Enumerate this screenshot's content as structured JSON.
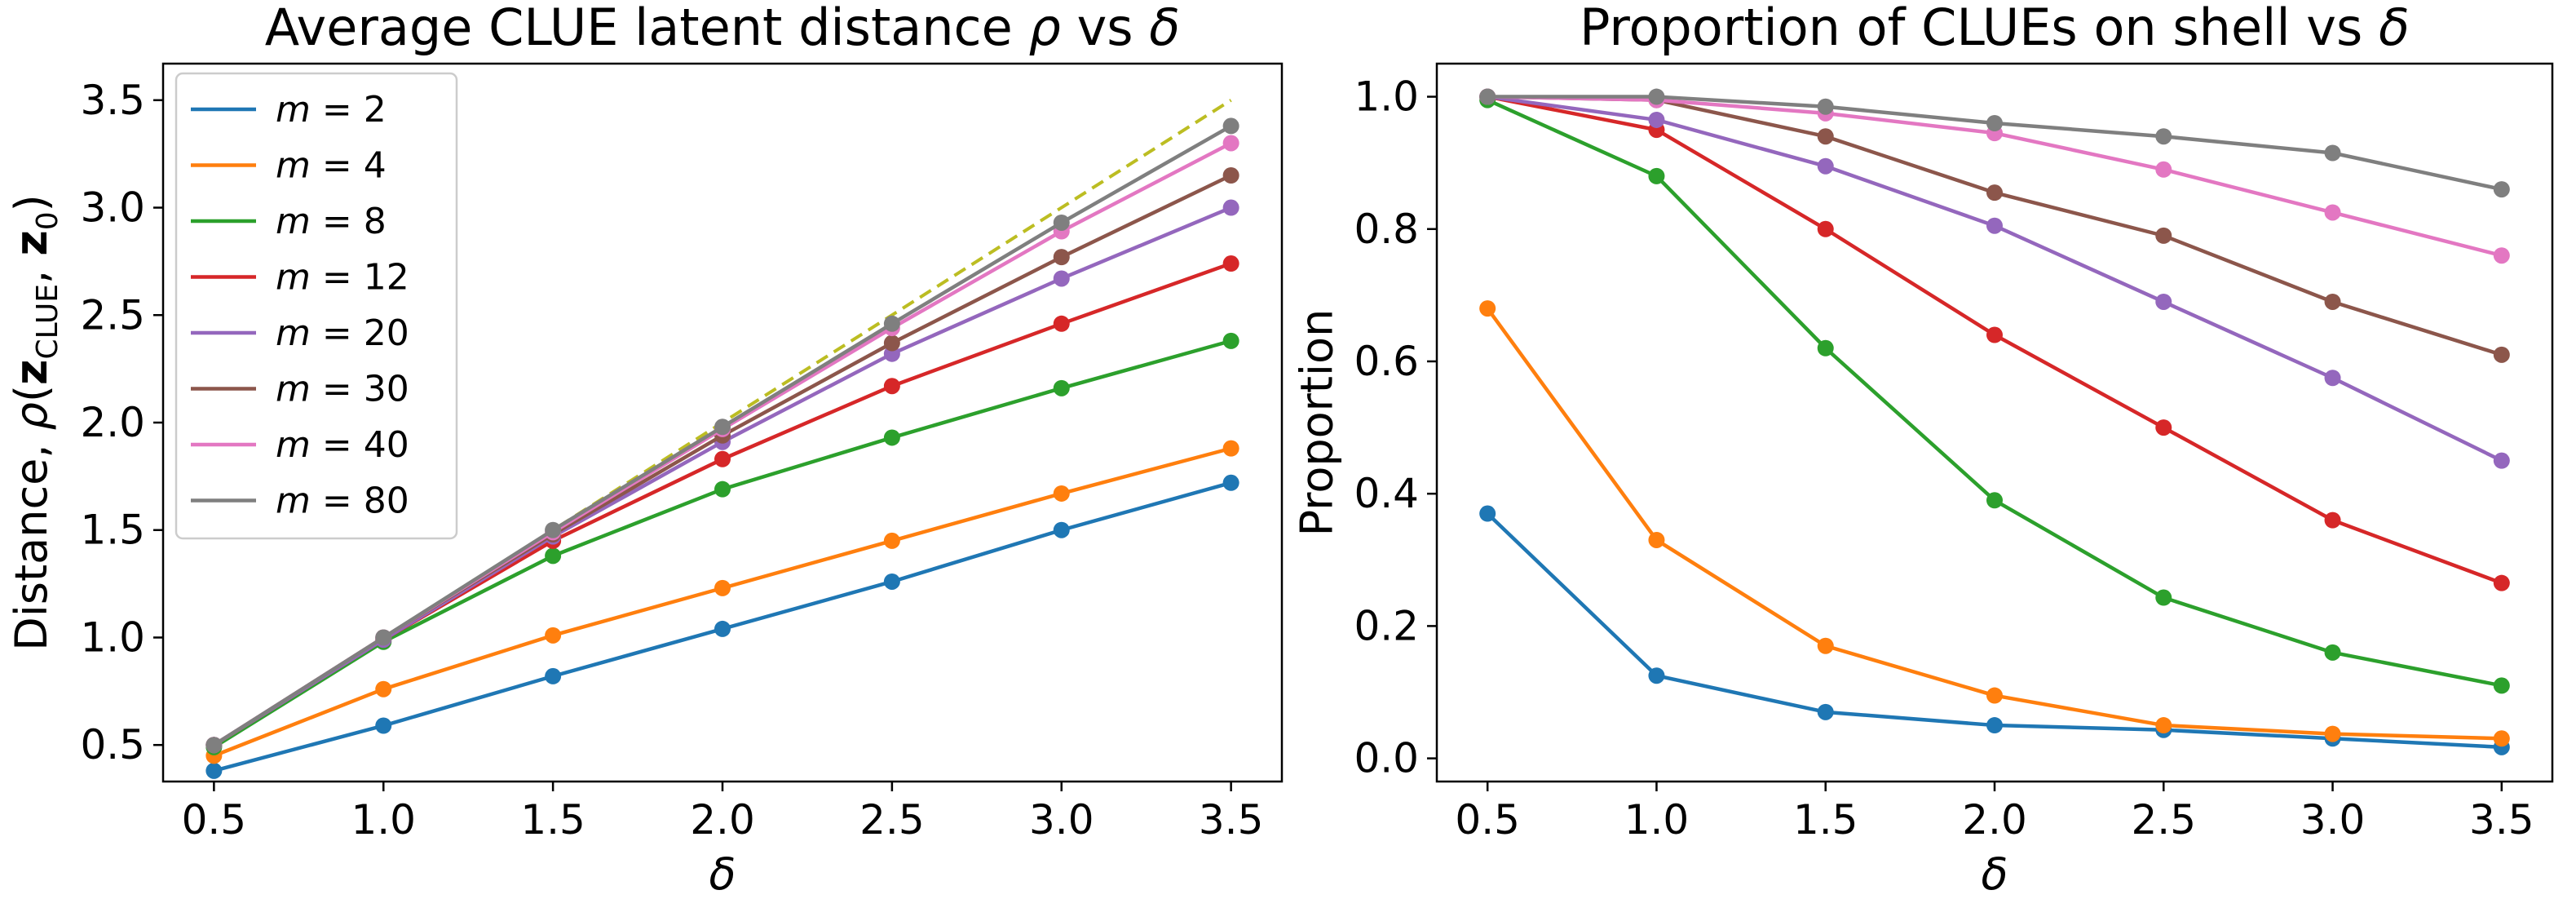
{
  "chart_data": [
    {
      "type": "line",
      "title": "Average CLUE latent distance ρ vs δ",
      "xlabel": "δ",
      "ylabel": "Distance, ρ(z_CLUE, z_0)",
      "x": [
        0.5,
        1.0,
        1.5,
        2.0,
        2.5,
        3.0,
        3.5
      ],
      "xlim": [
        0.35,
        3.65
      ],
      "ylim": [
        0.33,
        3.67
      ],
      "xticks": [
        "0.5",
        "1.0",
        "1.5",
        "2.0",
        "2.5",
        "3.0",
        "3.5"
      ],
      "yticks": [
        "0.5",
        "1.0",
        "1.5",
        "2.0",
        "2.5",
        "3.0",
        "3.5"
      ],
      "legend_position": "upper-left",
      "reference_line": {
        "x": [
          0.5,
          3.5
        ],
        "y": [
          0.5,
          3.5
        ],
        "style": "dashed",
        "color": "#bcbd22"
      },
      "series": [
        {
          "name": "m = 2",
          "color": "#1f77b4",
          "values": [
            0.38,
            0.59,
            0.82,
            1.04,
            1.26,
            1.5,
            1.72
          ]
        },
        {
          "name": "m = 4",
          "color": "#ff7f0e",
          "values": [
            0.45,
            0.76,
            1.01,
            1.23,
            1.45,
            1.67,
            1.88
          ]
        },
        {
          "name": "m = 8",
          "color": "#2ca02c",
          "values": [
            0.49,
            0.98,
            1.38,
            1.69,
            1.93,
            2.16,
            2.38
          ]
        },
        {
          "name": "m = 12",
          "color": "#d62728",
          "values": [
            0.5,
            0.99,
            1.45,
            1.83,
            2.17,
            2.46,
            2.74
          ]
        },
        {
          "name": "m = 20",
          "color": "#9467bd",
          "values": [
            0.5,
            0.99,
            1.47,
            1.91,
            2.32,
            2.67,
            3.0
          ]
        },
        {
          "name": "m = 30",
          "color": "#8c564b",
          "values": [
            0.5,
            1.0,
            1.48,
            1.94,
            2.37,
            2.77,
            3.15
          ]
        },
        {
          "name": "m = 40",
          "color": "#e377c2",
          "values": [
            0.5,
            1.0,
            1.49,
            1.97,
            2.44,
            2.89,
            3.3
          ]
        },
        {
          "name": "m = 80",
          "color": "#7f7f7f",
          "values": [
            0.5,
            1.0,
            1.5,
            1.98,
            2.46,
            2.93,
            3.38
          ]
        }
      ]
    },
    {
      "type": "line",
      "title": "Proportion of CLUEs on shell vs δ",
      "xlabel": "δ",
      "ylabel": "Proportion",
      "x": [
        0.5,
        1.0,
        1.5,
        2.0,
        2.5,
        3.0,
        3.5
      ],
      "xlim": [
        0.35,
        3.65
      ],
      "ylim": [
        -0.035,
        1.05
      ],
      "xticks": [
        "0.5",
        "1.0",
        "1.5",
        "2.0",
        "2.5",
        "3.0",
        "3.5"
      ],
      "yticks": [
        "0.0",
        "0.2",
        "0.4",
        "0.6",
        "0.8",
        "1.0"
      ],
      "series": [
        {
          "name": "m = 2",
          "color": "#1f77b4",
          "values": [
            0.37,
            0.125,
            0.07,
            0.05,
            0.043,
            0.03,
            0.017
          ]
        },
        {
          "name": "m = 4",
          "color": "#ff7f0e",
          "values": [
            0.68,
            0.33,
            0.17,
            0.095,
            0.05,
            0.037,
            0.03
          ]
        },
        {
          "name": "m = 8",
          "color": "#2ca02c",
          "values": [
            0.995,
            0.88,
            0.62,
            0.39,
            0.243,
            0.16,
            0.11
          ]
        },
        {
          "name": "m = 12",
          "color": "#d62728",
          "values": [
            1.0,
            0.95,
            0.8,
            0.64,
            0.5,
            0.36,
            0.265
          ]
        },
        {
          "name": "m = 20",
          "color": "#9467bd",
          "values": [
            1.0,
            0.965,
            0.895,
            0.805,
            0.69,
            0.575,
            0.45
          ]
        },
        {
          "name": "m = 30",
          "color": "#8c564b",
          "values": [
            1.0,
            0.995,
            0.94,
            0.855,
            0.79,
            0.69,
            0.61
          ]
        },
        {
          "name": "m = 40",
          "color": "#e377c2",
          "values": [
            1.0,
            0.995,
            0.975,
            0.945,
            0.89,
            0.825,
            0.76
          ]
        },
        {
          "name": "m = 80",
          "color": "#7f7f7f",
          "values": [
            1.0,
            1.0,
            0.985,
            0.96,
            0.94,
            0.915,
            0.86
          ]
        }
      ]
    }
  ]
}
